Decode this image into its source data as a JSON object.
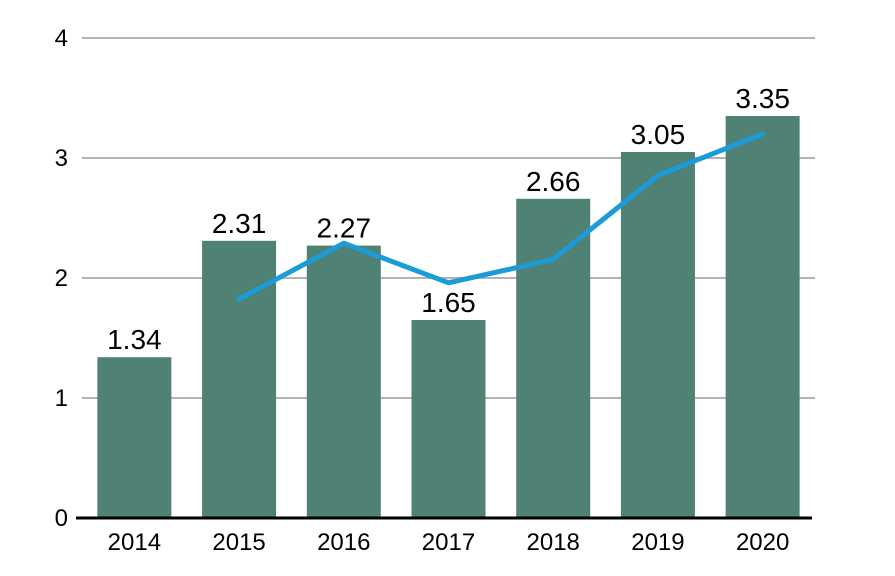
{
  "chart_data": {
    "type": "bar",
    "categories": [
      "2014",
      "2015",
      "2016",
      "2017",
      "2018",
      "2019",
      "2020"
    ],
    "series": [
      {
        "name": "annual-value-bars",
        "type": "bar",
        "values": [
          1.34,
          2.31,
          2.27,
          1.65,
          2.66,
          3.05,
          3.35
        ],
        "labels": [
          "1.34",
          "2.31",
          "2.27",
          "1.65",
          "2.66",
          "3.05",
          "3.35"
        ],
        "color": "#4F8174"
      },
      {
        "name": "trend-line",
        "type": "line",
        "values": [
          null,
          1.825,
          2.29,
          1.96,
          2.155,
          2.855,
          3.2
        ],
        "color": "#1B9BD8"
      }
    ],
    "title": "",
    "xlabel": "",
    "ylabel": "",
    "ylim": [
      0,
      4
    ],
    "yticks": [
      "0",
      "1",
      "2",
      "3",
      "4"
    ],
    "grid": true,
    "legend": false,
    "colors": {
      "bar": "#4F8174",
      "line": "#1B9BD8",
      "gridline": "#B3B3B3",
      "axis": "#000000",
      "label_text": "#000000",
      "background": "#FFFFFF"
    }
  }
}
